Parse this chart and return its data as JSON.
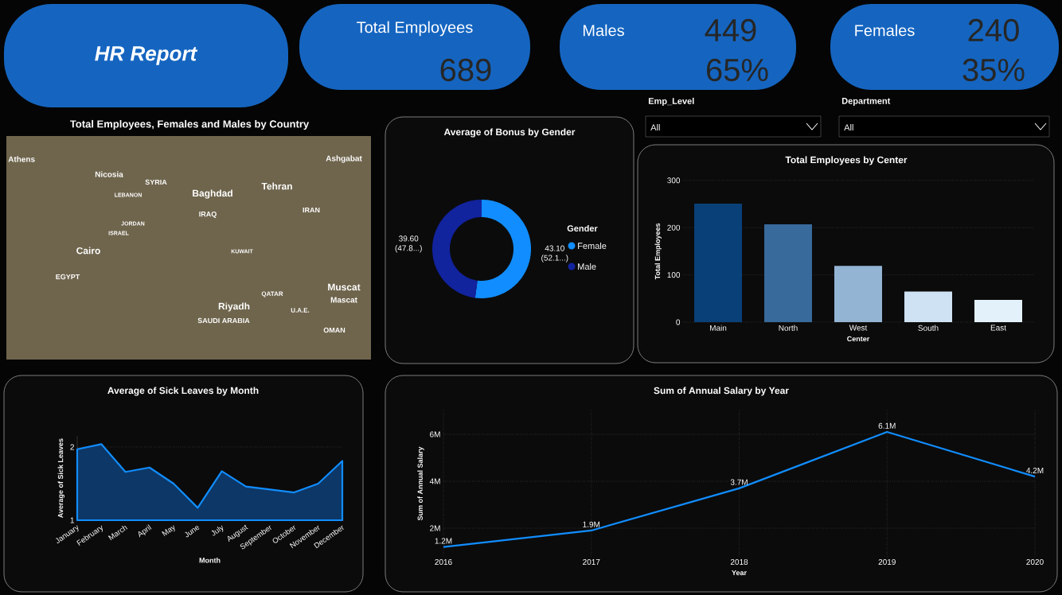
{
  "chart_data": [
    {
      "type": "other",
      "title": "HR Report"
    },
    {
      "type": "other",
      "title": "Total Employees",
      "annotations": [
        "689"
      ]
    },
    {
      "type": "other",
      "title": "Males",
      "annotations": [
        "449",
        "65%"
      ]
    },
    {
      "type": "other",
      "title": "Females",
      "annotations": [
        "240",
        "35%"
      ]
    },
    {
      "type": "other",
      "title": "Total Employees, Females and Males by Country",
      "annotations": [
        "Athens",
        "Nicosia",
        "SYRIA",
        "LEBANON",
        "Baghdad",
        "Tehran",
        "Ashgabat",
        "IRAQ",
        "IRAN",
        "JORDAN",
        "ISRAEL",
        "Cairo",
        "KUWAIT",
        "EGYPT",
        "QATAR",
        "Riyadh",
        "SAUDI ARABIA",
        "U.A.E.",
        "Muscat",
        "Mascat",
        "OMAN"
      ]
    },
    {
      "type": "donut",
      "title": "Average of Bonus by Gender",
      "categories": [
        "Female",
        "Male"
      ],
      "values": [
        43.1,
        39.6
      ],
      "colors": [
        "#118dff",
        "#12239e"
      ],
      "value_labels": [
        "43.10 (52.1...)",
        "39.60 (47.8...)"
      ],
      "legend_title": "Gender",
      "legend": "right"
    },
    {
      "type": "other",
      "annotations": [
        "Emp_Level",
        "All",
        "Department",
        "All"
      ]
    },
    {
      "type": "bar",
      "title": "Total Employees by Center",
      "categories": [
        "Main",
        "North",
        "West",
        "South",
        "East"
      ],
      "values": [
        251,
        207,
        119,
        65,
        47
      ],
      "colors": [
        "#0a4078",
        "#386a9c",
        "#94b4d4",
        "#cfe2f3",
        "#e3f1fb"
      ],
      "xlabel": "Center",
      "ylabel": "Total Employees",
      "ylim": [
        0,
        300
      ],
      "yticks": [
        0,
        100,
        200,
        300
      ],
      "grid": "y"
    },
    {
      "type": "area",
      "title": "Average of Sick Leaves by Month",
      "categories": [
        "January",
        "February",
        "March",
        "April",
        "May",
        "June",
        "July",
        "August",
        "September",
        "October",
        "November",
        "December"
      ],
      "values": [
        1.97,
        2.04,
        1.66,
        1.72,
        1.5,
        1.17,
        1.67,
        1.46,
        1.42,
        1.38,
        1.5,
        1.81
      ],
      "color": "#118dff",
      "xlabel": "Month",
      "ylabel": "Average of Sick Leaves",
      "ylim": [
        1,
        2.15
      ],
      "yticks": [
        1,
        2
      ],
      "grid": "y"
    },
    {
      "type": "line",
      "title": "Sum of Annual Salary by Year",
      "x": [
        2016,
        2017,
        2018,
        2019,
        2020
      ],
      "values": [
        1.2,
        1.9,
        3.7,
        6.1,
        4.2
      ],
      "value_labels": [
        "1.2M",
        "1.9M",
        "3.7M",
        "6.1M",
        "4.2M"
      ],
      "color": "#118dff",
      "xlabel": "Year",
      "ylabel": "Sum of Annual Salary",
      "xlim": [
        2016,
        2020
      ],
      "xticks": [
        2016,
        2017,
        2018,
        2019,
        2020
      ],
      "ylim": [
        0.8,
        7
      ],
      "yticks": [
        {
          "value": 2,
          "label": "2M"
        },
        {
          "value": 4,
          "label": "4M"
        },
        {
          "value": 6,
          "label": "6M"
        }
      ],
      "grid": true
    }
  ]
}
